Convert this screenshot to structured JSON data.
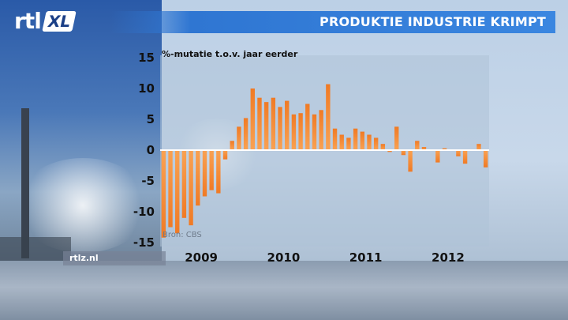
{
  "header": {
    "title": "PRODUKTIE INDUSTRIE KRIMPT",
    "logo_rtl": "rtl",
    "logo_xl": "XL"
  },
  "footer": {
    "site": "rtlz.nl"
  },
  "colors": {
    "bar": "#f07a24",
    "bar_light": "#f9a253",
    "title_bar": "#3a86e0",
    "zero_line": "#ffffff"
  },
  "chart_data": {
    "type": "bar",
    "ylabel": "%-mutatie t.o.v. jaar eerder",
    "source": "Bron: CBS",
    "ylim": [
      -15,
      15
    ],
    "yticks": [
      15,
      10,
      5,
      0,
      -5,
      -10,
      -15
    ],
    "year_labels": [
      "2009",
      "2010",
      "2011",
      "2012"
    ],
    "grid": false,
    "x": [
      "2009-01",
      "2009-02",
      "2009-03",
      "2009-04",
      "2009-05",
      "2009-06",
      "2009-07",
      "2009-08",
      "2009-09",
      "2009-10",
      "2009-11",
      "2009-12",
      "2010-01",
      "2010-02",
      "2010-03",
      "2010-04",
      "2010-05",
      "2010-06",
      "2010-07",
      "2010-08",
      "2010-09",
      "2010-10",
      "2010-11",
      "2010-12",
      "2011-01",
      "2011-02",
      "2011-03",
      "2011-04",
      "2011-05",
      "2011-06",
      "2011-07",
      "2011-08",
      "2011-09",
      "2011-10",
      "2011-11",
      "2011-12",
      "2012-01",
      "2012-02",
      "2012-03",
      "2012-04",
      "2012-05",
      "2012-06",
      "2012-07",
      "2012-08",
      "2012-09",
      "2012-10",
      "2012-11",
      "2012-12"
    ],
    "values": [
      -14.2,
      -12.5,
      -13.5,
      -11.0,
      -12.2,
      -9.0,
      -7.5,
      -6.5,
      -7.0,
      -1.5,
      1.5,
      3.8,
      5.2,
      10.0,
      8.5,
      7.8,
      8.5,
      7.0,
      8.0,
      5.8,
      6.0,
      7.5,
      5.8,
      6.5,
      10.7,
      3.5,
      2.5,
      2.0,
      3.5,
      3.0,
      2.5,
      2.0,
      1.0,
      -0.3,
      3.8,
      -0.8,
      -3.5,
      1.5,
      0.5,
      0.0,
      -2.0,
      0.3,
      0.0,
      -1.0,
      -2.2,
      0.0,
      1.0,
      -2.8
    ]
  }
}
